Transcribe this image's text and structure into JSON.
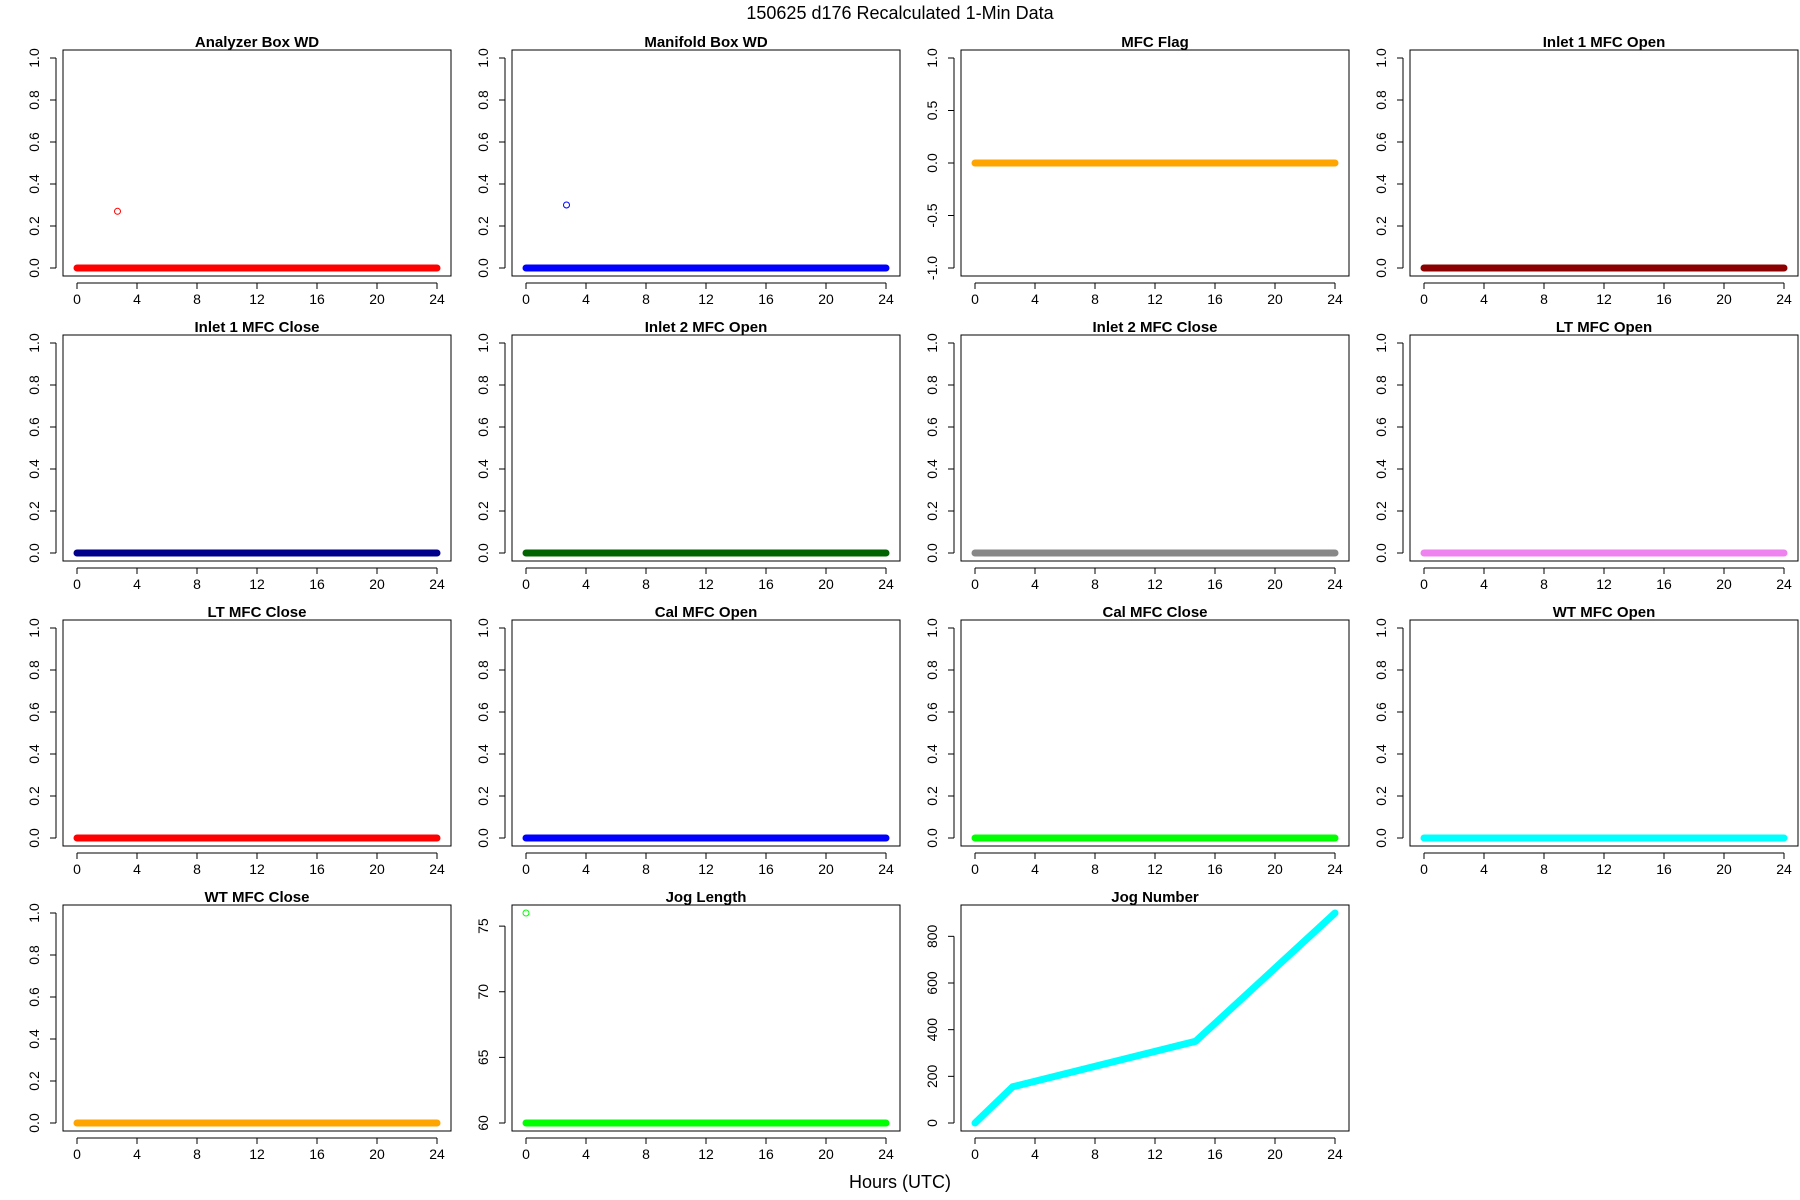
{
  "figure": {
    "title": "150625   d176   Recalculated 1-Min Data",
    "xlabel": "Hours (UTC)"
  },
  "chart_data": [
    {
      "type": "scatter",
      "title": "Analyzer Box WD",
      "color": "#ff0000",
      "xlim": [
        0,
        24
      ],
      "xticks": [
        "0",
        "4",
        "8",
        "12",
        "16",
        "20",
        "24"
      ],
      "ylim": [
        0,
        1
      ],
      "yticks": [
        "0.0",
        "0.2",
        "0.4",
        "0.6",
        "0.8",
        "1.0"
      ],
      "series": [
        {
          "x": [
            0,
            24
          ],
          "y": [
            0,
            0
          ],
          "style": "thick-line"
        }
      ],
      "points": [
        {
          "x": 2.7,
          "y": 0.27
        }
      ]
    },
    {
      "type": "scatter",
      "title": "Manifold Box WD",
      "color": "#0000ff",
      "xlim": [
        0,
        24
      ],
      "xticks": [
        "0",
        "4",
        "8",
        "12",
        "16",
        "20",
        "24"
      ],
      "ylim": [
        0,
        1
      ],
      "yticks": [
        "0.0",
        "0.2",
        "0.4",
        "0.6",
        "0.8",
        "1.0"
      ],
      "series": [
        {
          "x": [
            0,
            24
          ],
          "y": [
            0,
            0
          ],
          "style": "thick-line"
        }
      ],
      "points": [
        {
          "x": 2.7,
          "y": 0.3
        }
      ]
    },
    {
      "type": "scatter",
      "title": "MFC Flag",
      "color": "#ffa500",
      "xlim": [
        0,
        24
      ],
      "xticks": [
        "0",
        "4",
        "8",
        "12",
        "16",
        "20",
        "24"
      ],
      "ylim": [
        -1,
        1
      ],
      "yticks": [
        "-1.0",
        "-0.5",
        "0.0",
        "0.5",
        "1.0"
      ],
      "series": [
        {
          "x": [
            0,
            24
          ],
          "y": [
            0,
            0
          ],
          "style": "thick-line"
        }
      ],
      "points": []
    },
    {
      "type": "scatter",
      "title": "Inlet 1 MFC Open",
      "color": "#8b0000",
      "xlim": [
        0,
        24
      ],
      "xticks": [
        "0",
        "4",
        "8",
        "12",
        "16",
        "20",
        "24"
      ],
      "ylim": [
        0,
        1
      ],
      "yticks": [
        "0.0",
        "0.2",
        "0.4",
        "0.6",
        "0.8",
        "1.0"
      ],
      "series": [
        {
          "x": [
            0,
            24
          ],
          "y": [
            0,
            0
          ],
          "style": "thick-line"
        }
      ],
      "points": []
    },
    {
      "type": "scatter",
      "title": "Inlet 1 MFC Close",
      "color": "#00008b",
      "xlim": [
        0,
        24
      ],
      "xticks": [
        "0",
        "4",
        "8",
        "12",
        "16",
        "20",
        "24"
      ],
      "ylim": [
        0,
        1
      ],
      "yticks": [
        "0.0",
        "0.2",
        "0.4",
        "0.6",
        "0.8",
        "1.0"
      ],
      "series": [
        {
          "x": [
            0,
            24
          ],
          "y": [
            0,
            0
          ],
          "style": "thick-line"
        }
      ],
      "points": []
    },
    {
      "type": "scatter",
      "title": "Inlet 2 MFC Open",
      "color": "#006400",
      "xlim": [
        0,
        24
      ],
      "xticks": [
        "0",
        "4",
        "8",
        "12",
        "16",
        "20",
        "24"
      ],
      "ylim": [
        0,
        1
      ],
      "yticks": [
        "0.0",
        "0.2",
        "0.4",
        "0.6",
        "0.8",
        "1.0"
      ],
      "series": [
        {
          "x": [
            0,
            24
          ],
          "y": [
            0,
            0
          ],
          "style": "thick-line"
        }
      ],
      "points": []
    },
    {
      "type": "scatter",
      "title": "Inlet 2 MFC Close",
      "color": "#888888",
      "xlim": [
        0,
        24
      ],
      "xticks": [
        "0",
        "4",
        "8",
        "12",
        "16",
        "20",
        "24"
      ],
      "ylim": [
        0,
        1
      ],
      "yticks": [
        "0.0",
        "0.2",
        "0.4",
        "0.6",
        "0.8",
        "1.0"
      ],
      "series": [
        {
          "x": [
            0,
            24
          ],
          "y": [
            0,
            0
          ],
          "style": "thick-line"
        }
      ],
      "points": []
    },
    {
      "type": "scatter",
      "title": "LT MFC Open",
      "color": "#ee82ee",
      "xlim": [
        0,
        24
      ],
      "xticks": [
        "0",
        "4",
        "8",
        "12",
        "16",
        "20",
        "24"
      ],
      "ylim": [
        0,
        1
      ],
      "yticks": [
        "0.0",
        "0.2",
        "0.4",
        "0.6",
        "0.8",
        "1.0"
      ],
      "series": [
        {
          "x": [
            0,
            24
          ],
          "y": [
            0,
            0
          ],
          "style": "thick-line"
        }
      ],
      "points": []
    },
    {
      "type": "scatter",
      "title": "LT MFC Close",
      "color": "#ff0000",
      "xlim": [
        0,
        24
      ],
      "xticks": [
        "0",
        "4",
        "8",
        "12",
        "16",
        "20",
        "24"
      ],
      "ylim": [
        0,
        1
      ],
      "yticks": [
        "0.0",
        "0.2",
        "0.4",
        "0.6",
        "0.8",
        "1.0"
      ],
      "series": [
        {
          "x": [
            0,
            24
          ],
          "y": [
            0,
            0
          ],
          "style": "thick-line"
        }
      ],
      "points": []
    },
    {
      "type": "scatter",
      "title": "Cal MFC Open",
      "color": "#0000ff",
      "xlim": [
        0,
        24
      ],
      "xticks": [
        "0",
        "4",
        "8",
        "12",
        "16",
        "20",
        "24"
      ],
      "ylim": [
        0,
        1
      ],
      "yticks": [
        "0.0",
        "0.2",
        "0.4",
        "0.6",
        "0.8",
        "1.0"
      ],
      "series": [
        {
          "x": [
            0,
            24
          ],
          "y": [
            0,
            0
          ],
          "style": "thick-line"
        }
      ],
      "points": []
    },
    {
      "type": "scatter",
      "title": "Cal MFC Close",
      "color": "#00ff00",
      "xlim": [
        0,
        24
      ],
      "xticks": [
        "0",
        "4",
        "8",
        "12",
        "16",
        "20",
        "24"
      ],
      "ylim": [
        0,
        1
      ],
      "yticks": [
        "0.0",
        "0.2",
        "0.4",
        "0.6",
        "0.8",
        "1.0"
      ],
      "series": [
        {
          "x": [
            0,
            24
          ],
          "y": [
            0,
            0
          ],
          "style": "thick-line"
        }
      ],
      "points": []
    },
    {
      "type": "scatter",
      "title": "WT MFC Open",
      "color": "#00ffff",
      "xlim": [
        0,
        24
      ],
      "xticks": [
        "0",
        "4",
        "8",
        "12",
        "16",
        "20",
        "24"
      ],
      "ylim": [
        0,
        1
      ],
      "yticks": [
        "0.0",
        "0.2",
        "0.4",
        "0.6",
        "0.8",
        "1.0"
      ],
      "series": [
        {
          "x": [
            0,
            24
          ],
          "y": [
            0,
            0
          ],
          "style": "thick-line"
        }
      ],
      "points": []
    },
    {
      "type": "scatter",
      "title": "WT MFC Close",
      "color": "#ffa500",
      "xlim": [
        0,
        24
      ],
      "xticks": [
        "0",
        "4",
        "8",
        "12",
        "16",
        "20",
        "24"
      ],
      "ylim": [
        0,
        1
      ],
      "yticks": [
        "0.0",
        "0.2",
        "0.4",
        "0.6",
        "0.8",
        "1.0"
      ],
      "series": [
        {
          "x": [
            0,
            24
          ],
          "y": [
            0,
            0
          ],
          "style": "thick-line"
        }
      ],
      "points": []
    },
    {
      "type": "scatter",
      "title": "Jog Length",
      "color": "#00ff00",
      "xlim": [
        0,
        24
      ],
      "xticks": [
        "0",
        "4",
        "8",
        "12",
        "16",
        "20",
        "24"
      ],
      "ylim": [
        60,
        76
      ],
      "yticks": [
        "60",
        "65",
        "70",
        "75"
      ],
      "series": [
        {
          "x": [
            0,
            24
          ],
          "y": [
            60,
            60
          ],
          "style": "thick-line"
        }
      ],
      "points": [
        {
          "x": 0,
          "y": 76
        }
      ]
    },
    {
      "type": "line",
      "title": "Jog Number",
      "color": "#00ffff",
      "xlim": [
        0,
        24
      ],
      "xticks": [
        "0",
        "4",
        "8",
        "12",
        "16",
        "20",
        "24"
      ],
      "ylim": [
        0,
        900
      ],
      "yticks": [
        "0",
        "200",
        "400",
        "600",
        "800"
      ],
      "series": [
        {
          "x": [
            0,
            2.5,
            14.7,
            24
          ],
          "y": [
            0,
            155,
            350,
            900
          ],
          "style": "thick-line"
        }
      ],
      "points": []
    }
  ]
}
